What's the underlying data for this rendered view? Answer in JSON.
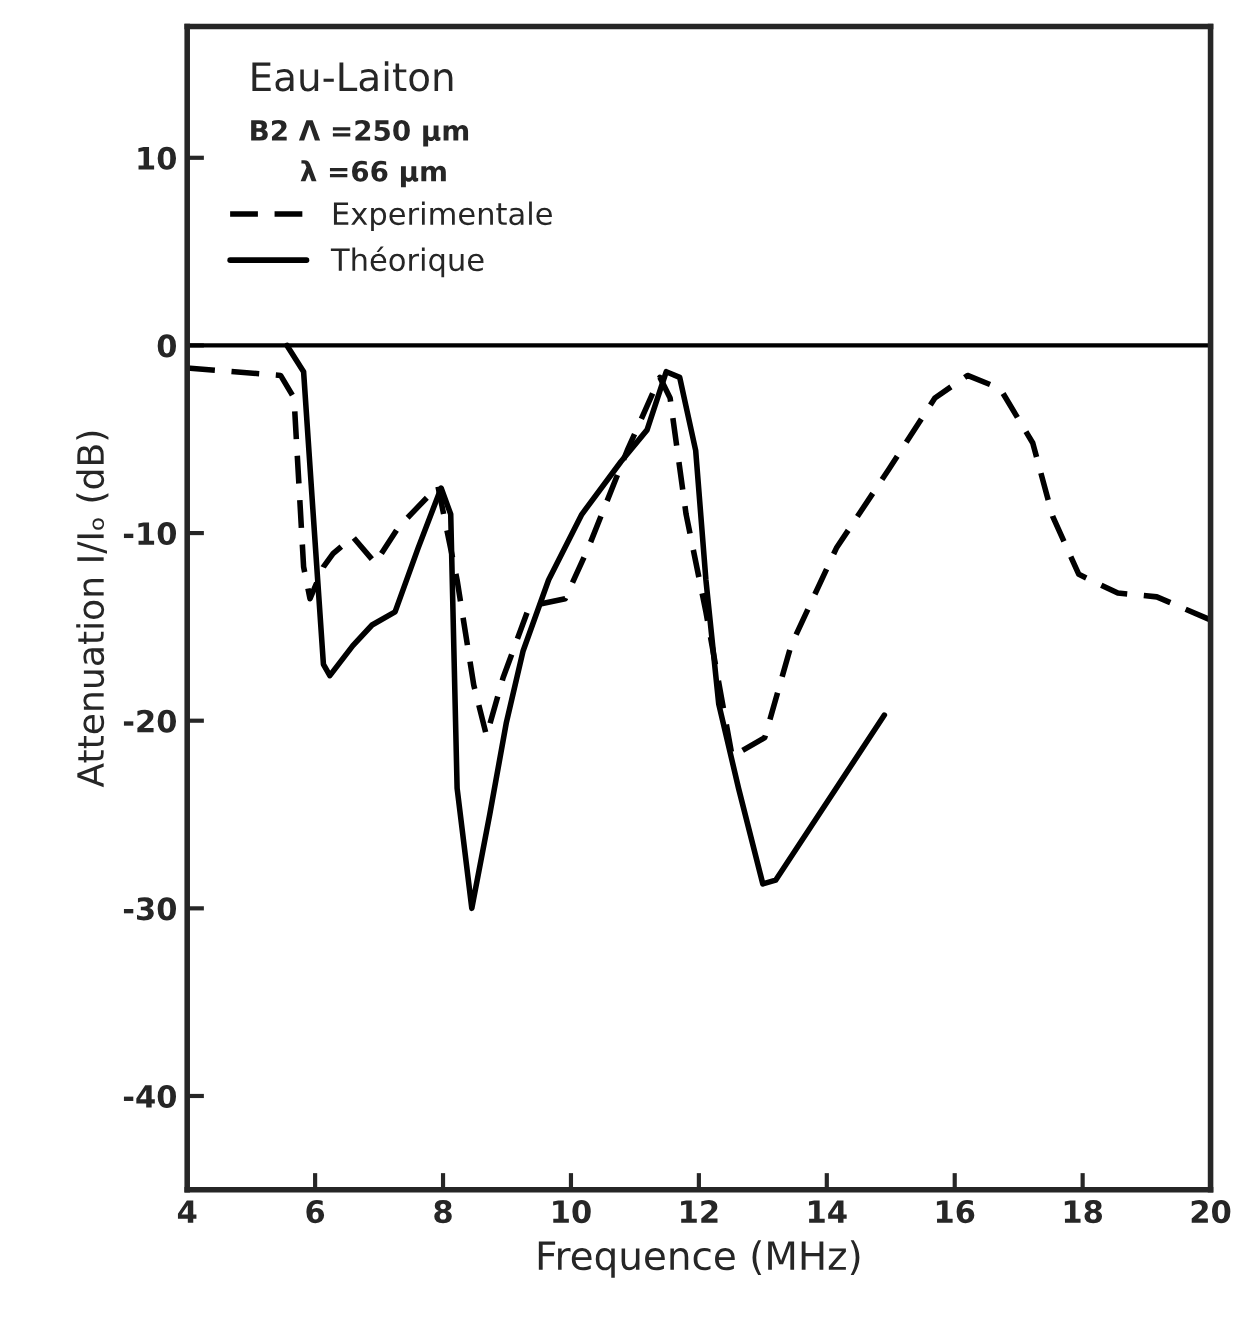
{
  "chart_data": {
    "type": "line",
    "xlabel": "Frequence (MHz)",
    "ylabel": "Attenuation I/Iₒ (dB)",
    "annotations": [
      "Eau-Laiton",
      "B2 Λ =250 µm",
      "λ =66 µm"
    ],
    "xlim": [
      4,
      20
    ],
    "xticks": [
      4,
      6,
      8,
      10,
      12,
      14,
      16,
      18,
      20
    ],
    "ylim": [
      -45,
      17
    ],
    "yticks": [
      10,
      0,
      -10,
      -20,
      -30,
      -40
    ],
    "ref_lines": [
      {
        "axis": "y",
        "value": 0,
        "color": "#000000",
        "line_style": "solid"
      }
    ],
    "legend": "top left",
    "grid": false,
    "series": [
      {
        "name": "Experimentale",
        "color": "#000000",
        "line_style": "dashed",
        "x": [
          4.0,
          5.46,
          5.67,
          5.82,
          5.92,
          6.13,
          6.28,
          6.59,
          6.94,
          7.3,
          7.92,
          8.22,
          8.48,
          8.68,
          8.94,
          9.35,
          9.91,
          10.27,
          10.88,
          11.39,
          11.55,
          11.8,
          12.11,
          12.52,
          13.03,
          13.44,
          14.15,
          14.97,
          15.69,
          16.2,
          16.71,
          17.22,
          17.53,
          17.94,
          18.55,
          19.16,
          19.98
        ],
        "values": [
          -1.2,
          -1.6,
          -2.8,
          -11.8,
          -13.5,
          -11.8,
          -11.1,
          -10.2,
          -11.6,
          -9.7,
          -7.5,
          -12.5,
          -18.1,
          -20.8,
          -17.7,
          -13.9,
          -13.5,
          -10.8,
          -5.6,
          -1.7,
          -2.8,
          -9.0,
          -14.2,
          -21.9,
          -20.9,
          -16.0,
          -10.8,
          -6.6,
          -2.8,
          -1.6,
          -2.3,
          -5.2,
          -9.1,
          -12.2,
          -13.2,
          -13.4,
          -14.6
        ]
      },
      {
        "name": "Théorique",
        "color": "#000000",
        "line_style": "solid",
        "x": [
          5.56,
          5.82,
          5.97,
          6.13,
          6.23,
          6.59,
          6.89,
          7.25,
          7.61,
          7.97,
          8.12,
          8.22,
          8.45,
          8.73,
          8.99,
          9.25,
          9.65,
          10.17,
          10.78,
          11.19,
          11.49,
          11.7,
          11.95,
          12.11,
          12.31,
          12.62,
          13.0,
          13.2,
          14.9
        ],
        "values": [
          0,
          -1.4,
          -9.0,
          -17.0,
          -17.6,
          -16.0,
          -14.9,
          -14.2,
          -10.8,
          -7.6,
          -9.0,
          -23.6,
          -30.0,
          -25.0,
          -20.1,
          -16.3,
          -12.5,
          -9.0,
          -6.2,
          -4.5,
          -1.4,
          -1.7,
          -5.6,
          -12.5,
          -19.1,
          -23.6,
          -28.7,
          -28.5,
          -19.7
        ]
      }
    ]
  }
}
